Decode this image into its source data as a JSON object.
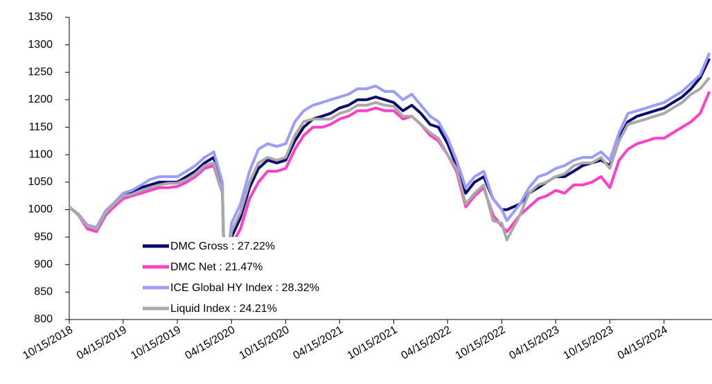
{
  "chart_data": {
    "type": "line",
    "x": [
      "10/15/2018",
      "11/15/2018",
      "12/15/2018",
      "01/15/2019",
      "02/15/2019",
      "03/15/2019",
      "04/15/2019",
      "05/15/2019",
      "06/15/2019",
      "07/15/2019",
      "08/15/2019",
      "09/15/2019",
      "10/15/2019",
      "11/15/2019",
      "12/15/2019",
      "01/15/2020",
      "02/15/2020",
      "03/15/2020",
      "03/23/2020",
      "04/15/2020",
      "05/15/2020",
      "06/15/2020",
      "07/15/2020",
      "08/15/2020",
      "09/15/2020",
      "10/15/2020",
      "11/15/2020",
      "12/15/2020",
      "01/15/2021",
      "02/15/2021",
      "03/15/2021",
      "04/15/2021",
      "05/15/2021",
      "06/15/2021",
      "07/15/2021",
      "08/15/2021",
      "09/15/2021",
      "10/15/2021",
      "11/15/2021",
      "12/15/2021",
      "01/15/2022",
      "02/15/2022",
      "03/15/2022",
      "04/15/2022",
      "05/15/2022",
      "06/15/2022",
      "07/15/2022",
      "08/15/2022",
      "09/15/2022",
      "10/15/2022",
      "11/01/2022",
      "12/15/2022",
      "01/15/2023",
      "02/15/2023",
      "03/15/2023",
      "04/15/2023",
      "05/15/2023",
      "06/15/2023",
      "07/15/2023",
      "08/15/2023",
      "09/15/2023",
      "10/15/2023",
      "11/15/2023",
      "12/15/2023",
      "01/15/2024",
      "02/15/2024",
      "03/15/2024",
      "04/15/2024",
      "05/15/2024",
      "06/15/2024",
      "07/15/2024",
      "08/15/2024",
      "09/15/2024"
    ],
    "series": [
      {
        "name": "DMC Gross : 27.22%",
        "color": "#0b0b6e",
        "values": [
          1005,
          990,
          970,
          965,
          995,
          1010,
          1025,
          1030,
          1040,
          1045,
          1050,
          1050,
          1050,
          1060,
          1070,
          1085,
          1095,
          1040,
          860,
          950,
          985,
          1040,
          1075,
          1090,
          1085,
          1090,
          1125,
          1150,
          1165,
          1170,
          1175,
          1185,
          1190,
          1200,
          1200,
          1205,
          1200,
          1195,
          1180,
          1190,
          1175,
          1155,
          1150,
          1120,
          1080,
          1030,
          1050,
          1060,
          1020,
          1000,
          1000,
          1010,
          1030,
          1040,
          1050,
          1060,
          1060,
          1070,
          1080,
          1085,
          1090,
          1080,
          1130,
          1160,
          1170,
          1175,
          1180,
          1185,
          1195,
          1205,
          1220,
          1240,
          1275
        ]
      },
      {
        "name": "DMC Net : 21.47%",
        "color": "#ff3fc8",
        "values": [
          1005,
          990,
          965,
          960,
          990,
          1005,
          1020,
          1025,
          1030,
          1035,
          1040,
          1040,
          1042,
          1050,
          1060,
          1075,
          1080,
          1030,
          855,
          935,
          965,
          1020,
          1050,
          1070,
          1070,
          1075,
          1110,
          1135,
          1150,
          1150,
          1155,
          1165,
          1170,
          1180,
          1180,
          1185,
          1180,
          1180,
          1165,
          1170,
          1155,
          1135,
          1125,
          1100,
          1070,
          1005,
          1025,
          1040,
          990,
          970,
          960,
          990,
          1005,
          1020,
          1025,
          1035,
          1030,
          1045,
          1045,
          1050,
          1060,
          1040,
          1090,
          1110,
          1120,
          1125,
          1130,
          1130,
          1140,
          1150,
          1160,
          1175,
          1215
        ]
      },
      {
        "name": "ICE Global HY Index : 28.32%",
        "color": "#9c9cff",
        "values": [
          1005,
          992,
          972,
          968,
          998,
          1012,
          1030,
          1035,
          1045,
          1055,
          1060,
          1060,
          1060,
          1070,
          1080,
          1095,
          1105,
          1050,
          870,
          975,
          1010,
          1070,
          1110,
          1120,
          1115,
          1120,
          1160,
          1180,
          1190,
          1195,
          1200,
          1205,
          1210,
          1220,
          1220,
          1225,
          1215,
          1215,
          1200,
          1210,
          1190,
          1170,
          1160,
          1130,
          1090,
          1040,
          1060,
          1070,
          1020,
          1000,
          980,
          1010,
          1040,
          1060,
          1065,
          1075,
          1080,
          1090,
          1095,
          1095,
          1105,
          1090,
          1140,
          1175,
          1180,
          1185,
          1190,
          1195,
          1205,
          1215,
          1230,
          1245,
          1285
        ]
      },
      {
        "name": "Liquid Index : 24.21%",
        "color": "#a9a9a9",
        "values": [
          1005,
          990,
          970,
          965,
          995,
          1010,
          1025,
          1028,
          1035,
          1040,
          1045,
          1048,
          1048,
          1055,
          1065,
          1080,
          1085,
          1030,
          855,
          960,
          995,
          1050,
          1085,
          1095,
          1090,
          1095,
          1135,
          1160,
          1165,
          1165,
          1165,
          1175,
          1180,
          1190,
          1190,
          1195,
          1190,
          1188,
          1170,
          1170,
          1155,
          1140,
          1130,
          1100,
          1075,
          1010,
          1030,
          1045,
          980,
          975,
          945,
          990,
          1030,
          1045,
          1050,
          1060,
          1065,
          1080,
          1085,
          1085,
          1095,
          1075,
          1125,
          1155,
          1160,
          1165,
          1170,
          1175,
          1185,
          1195,
          1210,
          1220,
          1240
        ]
      }
    ],
    "xlim": [
      "10/15/2018",
      "09/24/2024"
    ],
    "xticks": [
      "10/15/2018",
      "04/15/2019",
      "10/15/2019",
      "04/15/2020",
      "10/15/2020",
      "04/15/2021",
      "10/15/2021",
      "04/15/2022",
      "10/15/2022",
      "04/15/2023",
      "10/15/2023",
      "04/15/2024"
    ],
    "ylim": [
      800,
      1350
    ],
    "yticks": [
      800,
      850,
      900,
      950,
      1000,
      1050,
      1100,
      1150,
      1200,
      1250,
      1300,
      1350
    ],
    "legend": "lower center"
  }
}
